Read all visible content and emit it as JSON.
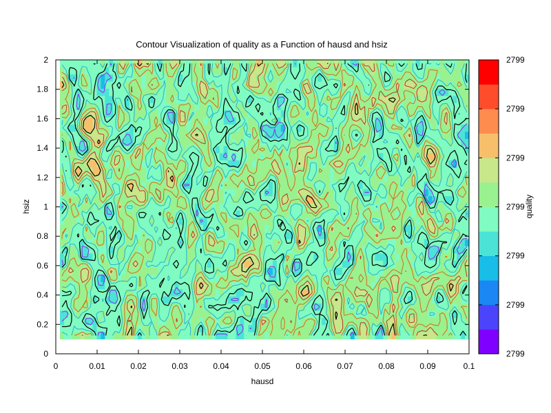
{
  "chart_data": {
    "type": "heatmap",
    "title": "Contour Visualization of quality as a Function of hausd and hsiz",
    "xlabel": "hausd",
    "ylabel": "hsiz",
    "xlim": [
      0,
      0.1
    ],
    "ylim": [
      0,
      2
    ],
    "x_ticks": [
      "0",
      "0.01",
      "0.02",
      "0.03",
      "0.04",
      "0.05",
      "0.06",
      "0.07",
      "0.08",
      "0.09",
      "0.1"
    ],
    "y_ticks": [
      "0",
      "0.2",
      "0.4",
      "0.6",
      "0.8",
      "1",
      "1.2",
      "1.4",
      "1.6",
      "1.8",
      "2"
    ],
    "data_extent": {
      "x": [
        0.001,
        0.1
      ],
      "y": [
        0.1,
        2
      ]
    },
    "grid_resolution": {
      "nx": 100,
      "ny": 39
    },
    "colorbar": {
      "label": "quality",
      "tick_labels": [
        "2799",
        "2799",
        "2799",
        "2799",
        "2799",
        "2799",
        "2799"
      ],
      "levels": [
        "#7f00ff",
        "#4c44fc",
        "#1a87f4",
        "#18bde8",
        "#4ce3d7",
        "#80fbc2",
        "#99f28f",
        "#c8e68a",
        "#f8bf6b",
        "#ff8c4f",
        "#ff4c2a",
        "#ff0000"
      ]
    },
    "contour_colors": [
      "#000000",
      "#8b2be2",
      "#2ab0c8",
      "#d46a1e",
      "#c03020"
    ],
    "note_values": "All colorbar tick labels print 2799; field values vary only in small decimals around 2799"
  }
}
